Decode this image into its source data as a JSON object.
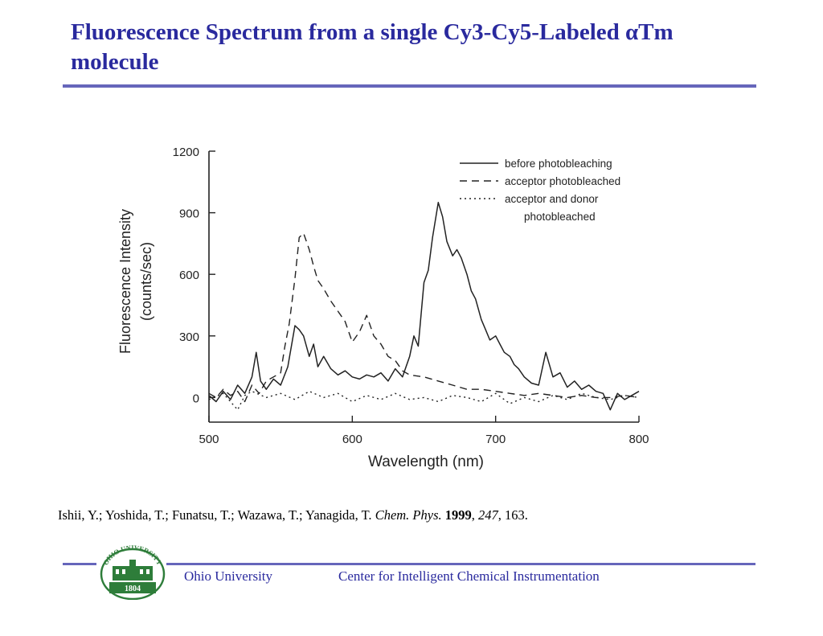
{
  "colors": {
    "title": "#2a2a9e",
    "rule": "#6666bb",
    "footer_text": "#2a2a9e",
    "seal_green": "#2e7d3a"
  },
  "slide": {
    "title": "Fluorescence Spectrum from a single Cy3-Cy5-Labeled αTm molecule"
  },
  "citation": {
    "authors": "Ishii, Y.; Yoshida, T.; Funatsu, T.; Wazawa, T.; Yanagida, T. ",
    "journal": "Chem. Phys.",
    "year": "1999",
    "volume": "247",
    "pages": ", 163."
  },
  "footer": {
    "left": "Ohio University",
    "right": "Center for Intelligent Chemical Instrumentation",
    "seal_top_text": "OHIO UNIVERSITY",
    "seal_year": "1804"
  },
  "chart_data": {
    "type": "line",
    "title": "",
    "xlabel": "Wavelength (nm)",
    "ylabel_line1": "Fluorescence Intensity",
    "ylabel_line2": "(counts/sec)",
    "xlim": [
      500,
      800
    ],
    "ylim": [
      -120,
      1200
    ],
    "x_ticks": [
      500,
      600,
      700,
      800
    ],
    "y_ticks": [
      0,
      300,
      600,
      900,
      1200
    ],
    "x_tick_labels": [
      "500",
      "600",
      "700",
      "800"
    ],
    "y_tick_labels": [
      "0",
      "300",
      "600",
      "900",
      "1200"
    ],
    "grid": false,
    "legend_position": "top-right",
    "series": [
      {
        "name": "before photobleaching",
        "style": "solid",
        "x": [
          500,
          505,
          510,
          515,
          520,
          525,
          530,
          533,
          536,
          540,
          545,
          550,
          555,
          560,
          563,
          566,
          570,
          573,
          576,
          580,
          585,
          590,
          595,
          600,
          605,
          610,
          615,
          620,
          625,
          630,
          635,
          640,
          643,
          646,
          650,
          653,
          656,
          660,
          663,
          666,
          670,
          673,
          676,
          680,
          683,
          686,
          690,
          693,
          696,
          700,
          703,
          706,
          710,
          713,
          716,
          720,
          725,
          730,
          735,
          740,
          745,
          750,
          755,
          760,
          765,
          770,
          775,
          780,
          785,
          790,
          795,
          800
        ],
        "y": [
          10,
          -20,
          30,
          -10,
          60,
          20,
          100,
          220,
          80,
          40,
          90,
          60,
          150,
          350,
          330,
          300,
          200,
          260,
          150,
          200,
          140,
          110,
          130,
          100,
          90,
          110,
          100,
          120,
          80,
          140,
          100,
          200,
          300,
          250,
          560,
          620,
          780,
          950,
          880,
          760,
          690,
          720,
          680,
          600,
          520,
          480,
          380,
          330,
          280,
          300,
          260,
          220,
          200,
          160,
          140,
          100,
          70,
          60,
          220,
          100,
          120,
          50,
          80,
          40,
          60,
          30,
          20,
          -60,
          20,
          -10,
          10,
          30
        ]
      },
      {
        "name": "acceptor photobleached",
        "style": "dashed",
        "x": [
          500,
          505,
          510,
          515,
          520,
          525,
          530,
          535,
          540,
          545,
          550,
          553,
          556,
          560,
          563,
          566,
          570,
          573,
          576,
          580,
          585,
          590,
          595,
          600,
          605,
          610,
          615,
          620,
          625,
          630,
          635,
          640,
          650,
          660,
          670,
          680,
          690,
          700,
          710,
          720,
          730,
          740,
          750,
          760,
          770,
          780,
          790,
          800
        ],
        "y": [
          20,
          0,
          40,
          10,
          30,
          -20,
          60,
          20,
          80,
          100,
          120,
          250,
          360,
          580,
          780,
          800,
          720,
          640,
          570,
          530,
          470,
          420,
          370,
          270,
          320,
          400,
          300,
          260,
          200,
          180,
          130,
          110,
          100,
          80,
          60,
          40,
          40,
          30,
          20,
          10,
          20,
          10,
          0,
          10,
          0,
          0,
          10,
          0
        ]
      },
      {
        "name": "acceptor and donor photobleached",
        "style": "dotted",
        "x": [
          500,
          510,
          520,
          525,
          530,
          540,
          550,
          560,
          570,
          580,
          590,
          600,
          610,
          620,
          630,
          640,
          650,
          660,
          670,
          680,
          690,
          700,
          710,
          720,
          730,
          740,
          750,
          760,
          770,
          780,
          790,
          800
        ],
        "y": [
          -10,
          20,
          -60,
          10,
          30,
          0,
          20,
          -10,
          30,
          0,
          20,
          -20,
          10,
          -10,
          20,
          -10,
          0,
          -20,
          10,
          0,
          -20,
          20,
          -30,
          0,
          -20,
          10,
          -10,
          20,
          0,
          -10,
          10,
          0
        ]
      }
    ]
  }
}
